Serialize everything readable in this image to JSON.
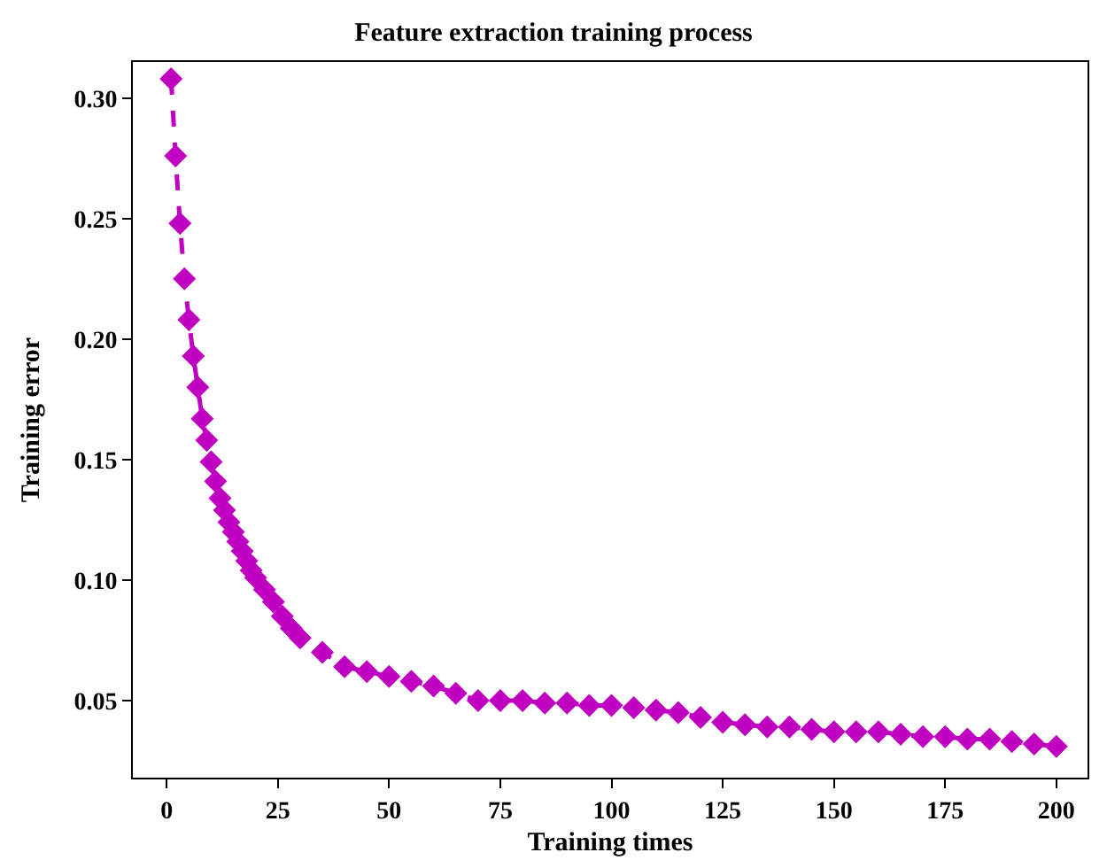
{
  "chart_data": {
    "type": "line",
    "title": "Feature extraction training process",
    "xlabel": "Training times",
    "ylabel": "Training error",
    "x": [
      1,
      2,
      3,
      4,
      5,
      6,
      7,
      8,
      9,
      10,
      11,
      12,
      13,
      14,
      15,
      16,
      17,
      18,
      19,
      20,
      22,
      24,
      26,
      28,
      30,
      35,
      40,
      45,
      50,
      55,
      60,
      65,
      70,
      75,
      80,
      85,
      90,
      95,
      100,
      105,
      110,
      115,
      120,
      125,
      130,
      135,
      140,
      145,
      150,
      155,
      160,
      165,
      170,
      175,
      180,
      185,
      190,
      195,
      200
    ],
    "series": [
      {
        "color": "#c000c0",
        "values": [
          0.308,
          0.276,
          0.248,
          0.225,
          0.208,
          0.193,
          0.18,
          0.167,
          0.158,
          0.149,
          0.141,
          0.134,
          0.129,
          0.124,
          0.12,
          0.116,
          0.112,
          0.108,
          0.104,
          0.101,
          0.096,
          0.091,
          0.085,
          0.08,
          0.076,
          0.07,
          0.064,
          0.062,
          0.06,
          0.058,
          0.056,
          0.053,
          0.05,
          0.05,
          0.05,
          0.049,
          0.049,
          0.048,
          0.048,
          0.047,
          0.046,
          0.045,
          0.043,
          0.041,
          0.04,
          0.039,
          0.039,
          0.038,
          0.037,
          0.037,
          0.037,
          0.036,
          0.035,
          0.035,
          0.034,
          0.034,
          0.033,
          0.032,
          0.031
        ]
      }
    ],
    "xlim": [
      -7.6,
      207
    ],
    "xticks": [
      0,
      25,
      50,
      75,
      100,
      125,
      150,
      175,
      200
    ],
    "ylim": [
      0.018,
      0.315
    ],
    "yticks": [
      0.05,
      {
        "value": 0.1,
        "label": "0.10"
      },
      0.15,
      {
        "value": 0.2,
        "label": "0.20"
      },
      0.25,
      {
        "value": 0.3,
        "label": "0.30"
      }
    ],
    "marker": "diamond",
    "line_style": "dashed"
  }
}
